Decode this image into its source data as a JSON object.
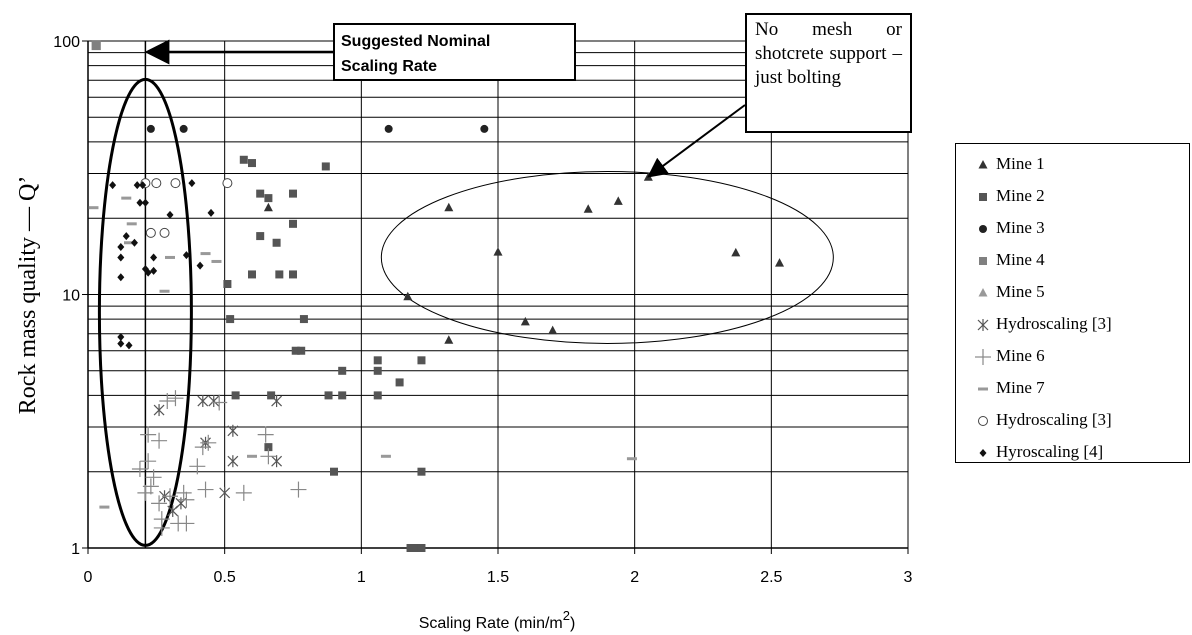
{
  "chart_data": {
    "type": "scatter",
    "xlabel": "Scaling Rate (min/m",
    "xlabel_sup": "2",
    "xlabel_end": ")",
    "ylabel": "Rock mass quality — Q’",
    "xlim": [
      0,
      3
    ],
    "ylim": [
      1,
      100
    ],
    "yscale": "log",
    "x_ticks": [
      "0",
      "0.5",
      "1",
      "1.5",
      "2",
      "2.5",
      "3"
    ],
    "x_tick_values": [
      0,
      0.5,
      1,
      1.5,
      2,
      2.5,
      3
    ],
    "y_ticks": [
      "1",
      "10",
      "100"
    ],
    "y_tick_values": [
      1,
      10,
      100
    ],
    "grid": "horizontal minor log lines and vertical lines at each x tick",
    "legend_position": "right",
    "series": [
      {
        "name": "Mine 1",
        "marker": "triangle",
        "color": "#333333",
        "points": [
          [
            0.66,
            22
          ],
          [
            1.17,
            9.8
          ],
          [
            1.32,
            22
          ],
          [
            1.32,
            6.6
          ],
          [
            1.5,
            14.7
          ],
          [
            1.6,
            7.8
          ],
          [
            1.7,
            7.2
          ],
          [
            1.83,
            21.7
          ],
          [
            1.94,
            23.3
          ],
          [
            2.05,
            29
          ],
          [
            2.37,
            14.6
          ],
          [
            2.53,
            13.3
          ]
        ]
      },
      {
        "name": "Mine 2",
        "marker": "square",
        "color": "#555555",
        "points": [
          [
            0.51,
            11
          ],
          [
            0.52,
            8
          ],
          [
            0.54,
            4
          ],
          [
            0.57,
            34
          ],
          [
            0.6,
            12
          ],
          [
            0.6,
            33
          ],
          [
            0.63,
            25
          ],
          [
            0.63,
            17
          ],
          [
            0.66,
            24
          ],
          [
            0.67,
            4
          ],
          [
            0.66,
            2.5
          ],
          [
            0.69,
            16
          ],
          [
            0.7,
            12
          ],
          [
            0.75,
            12
          ],
          [
            0.75,
            19
          ],
          [
            0.75,
            25
          ],
          [
            0.76,
            6
          ],
          [
            0.78,
            6
          ],
          [
            0.79,
            8
          ],
          [
            0.87,
            32
          ],
          [
            0.88,
            4
          ],
          [
            0.9,
            2
          ],
          [
            0.93,
            5
          ],
          [
            0.93,
            4
          ],
          [
            1.06,
            5.5
          ],
          [
            1.06,
            5
          ],
          [
            1.06,
            4
          ],
          [
            1.14,
            4.5
          ],
          [
            1.18,
            1
          ],
          [
            1.2,
            1
          ],
          [
            1.22,
            1
          ],
          [
            1.22,
            5.5
          ],
          [
            1.22,
            2
          ]
        ]
      },
      {
        "name": "Mine 3",
        "marker": "circle",
        "color": "#222222",
        "points": [
          [
            0.23,
            45
          ],
          [
            0.35,
            45
          ],
          [
            1.1,
            45
          ],
          [
            1.45,
            45
          ]
        ]
      },
      {
        "name": "Mine 4",
        "marker": "square",
        "color": "#808080",
        "points": [
          [
            0.03,
            96
          ]
        ]
      },
      {
        "name": "Mine 5",
        "marker": "triangle",
        "color": "#999999",
        "points": []
      },
      {
        "name": "Hydroscaling [3]",
        "marker": "asterisk",
        "color": "#555555",
        "points": [
          [
            0.26,
            3.5
          ],
          [
            0.28,
            1.6
          ],
          [
            0.31,
            1.4
          ],
          [
            0.34,
            1.5
          ],
          [
            0.42,
            3.8
          ],
          [
            0.43,
            2.6
          ],
          [
            0.46,
            3.8
          ],
          [
            0.5,
            1.65
          ],
          [
            0.53,
            2.9
          ],
          [
            0.53,
            2.2
          ],
          [
            0.69,
            3.8
          ],
          [
            0.69,
            2.2
          ]
        ]
      },
      {
        "name": "Mine 6",
        "marker": "plus",
        "color": "#888888",
        "points": [
          [
            0.19,
            2.05
          ],
          [
            0.21,
            1.65
          ],
          [
            0.22,
            2.2
          ],
          [
            0.22,
            2.8
          ],
          [
            0.23,
            1.75
          ],
          [
            0.24,
            1.9
          ],
          [
            0.26,
            2.65
          ],
          [
            0.26,
            1.5
          ],
          [
            0.27,
            1.3
          ],
          [
            0.27,
            1.2
          ],
          [
            0.29,
            3.8
          ],
          [
            0.3,
            1.6
          ],
          [
            0.32,
            3.9
          ],
          [
            0.33,
            1.25
          ],
          [
            0.35,
            1.65
          ],
          [
            0.36,
            1.55
          ],
          [
            0.36,
            1.25
          ],
          [
            0.4,
            2.1
          ],
          [
            0.42,
            2.5
          ],
          [
            0.43,
            1.7
          ],
          [
            0.44,
            2.6
          ],
          [
            0.48,
            3.75
          ],
          [
            0.57,
            1.65
          ],
          [
            0.65,
            2.8
          ],
          [
            0.66,
            2.3
          ],
          [
            0.77,
            1.7
          ]
        ]
      },
      {
        "name": "Mine 7",
        "marker": "dash",
        "color": "#999999",
        "points": [
          [
            0.02,
            22
          ],
          [
            0.06,
            1.45
          ],
          [
            0.14,
            24
          ],
          [
            0.15,
            16
          ],
          [
            0.16,
            19
          ],
          [
            0.28,
            10.3
          ],
          [
            0.3,
            14
          ],
          [
            0.43,
            14.5
          ],
          [
            0.47,
            13.5
          ],
          [
            0.6,
            2.3
          ],
          [
            1.09,
            2.3
          ],
          [
            1.99,
            2.25
          ]
        ]
      },
      {
        "name": "Hydroscaling [3]",
        "marker": "circle-open",
        "color": "#444444",
        "points": [
          [
            0.21,
            27.5
          ],
          [
            0.23,
            17.5
          ],
          [
            0.25,
            27.5
          ],
          [
            0.28,
            17.5
          ],
          [
            0.32,
            27.5
          ],
          [
            0.51,
            27.5
          ]
        ]
      },
      {
        "name": "Hyroscaling [4]",
        "marker": "diamond",
        "color": "#111111",
        "points": [
          [
            0.09,
            27
          ],
          [
            0.12,
            14
          ],
          [
            0.12,
            11.7
          ],
          [
            0.12,
            15.4
          ],
          [
            0.12,
            6.8
          ],
          [
            0.12,
            6.4
          ],
          [
            0.14,
            17
          ],
          [
            0.15,
            6.3
          ],
          [
            0.17,
            16
          ],
          [
            0.18,
            27
          ],
          [
            0.19,
            23
          ],
          [
            0.2,
            27
          ],
          [
            0.21,
            23
          ],
          [
            0.21,
            12.6
          ],
          [
            0.22,
            12.2
          ],
          [
            0.24,
            14
          ],
          [
            0.24,
            12.4
          ],
          [
            0.3,
            20.6
          ],
          [
            0.36,
            14.3
          ],
          [
            0.38,
            27.5
          ],
          [
            0.41,
            13
          ],
          [
            0.45,
            21
          ]
        ]
      }
    ],
    "annotations": [
      {
        "text": "Suggested Nominal Scaling Rate",
        "line1": "Suggested Nominal",
        "line2": "Scaling Rate",
        "points_to": [
          0.21,
          90
        ]
      },
      {
        "text": "No mesh or shotcrete support – just bolting",
        "points_to": [
          2.05,
          29
        ]
      }
    ],
    "shapes": [
      {
        "shape": "ellipse",
        "center": [
          0.21,
          8.5
        ],
        "note": "tall bold ellipse around low scaling rates"
      },
      {
        "shape": "ellipse",
        "center": [
          1.9,
          14
        ],
        "note": "thin ellipse around Mine 1 high scaling rates"
      },
      {
        "shape": "vline",
        "x": 0.21
      }
    ]
  }
}
